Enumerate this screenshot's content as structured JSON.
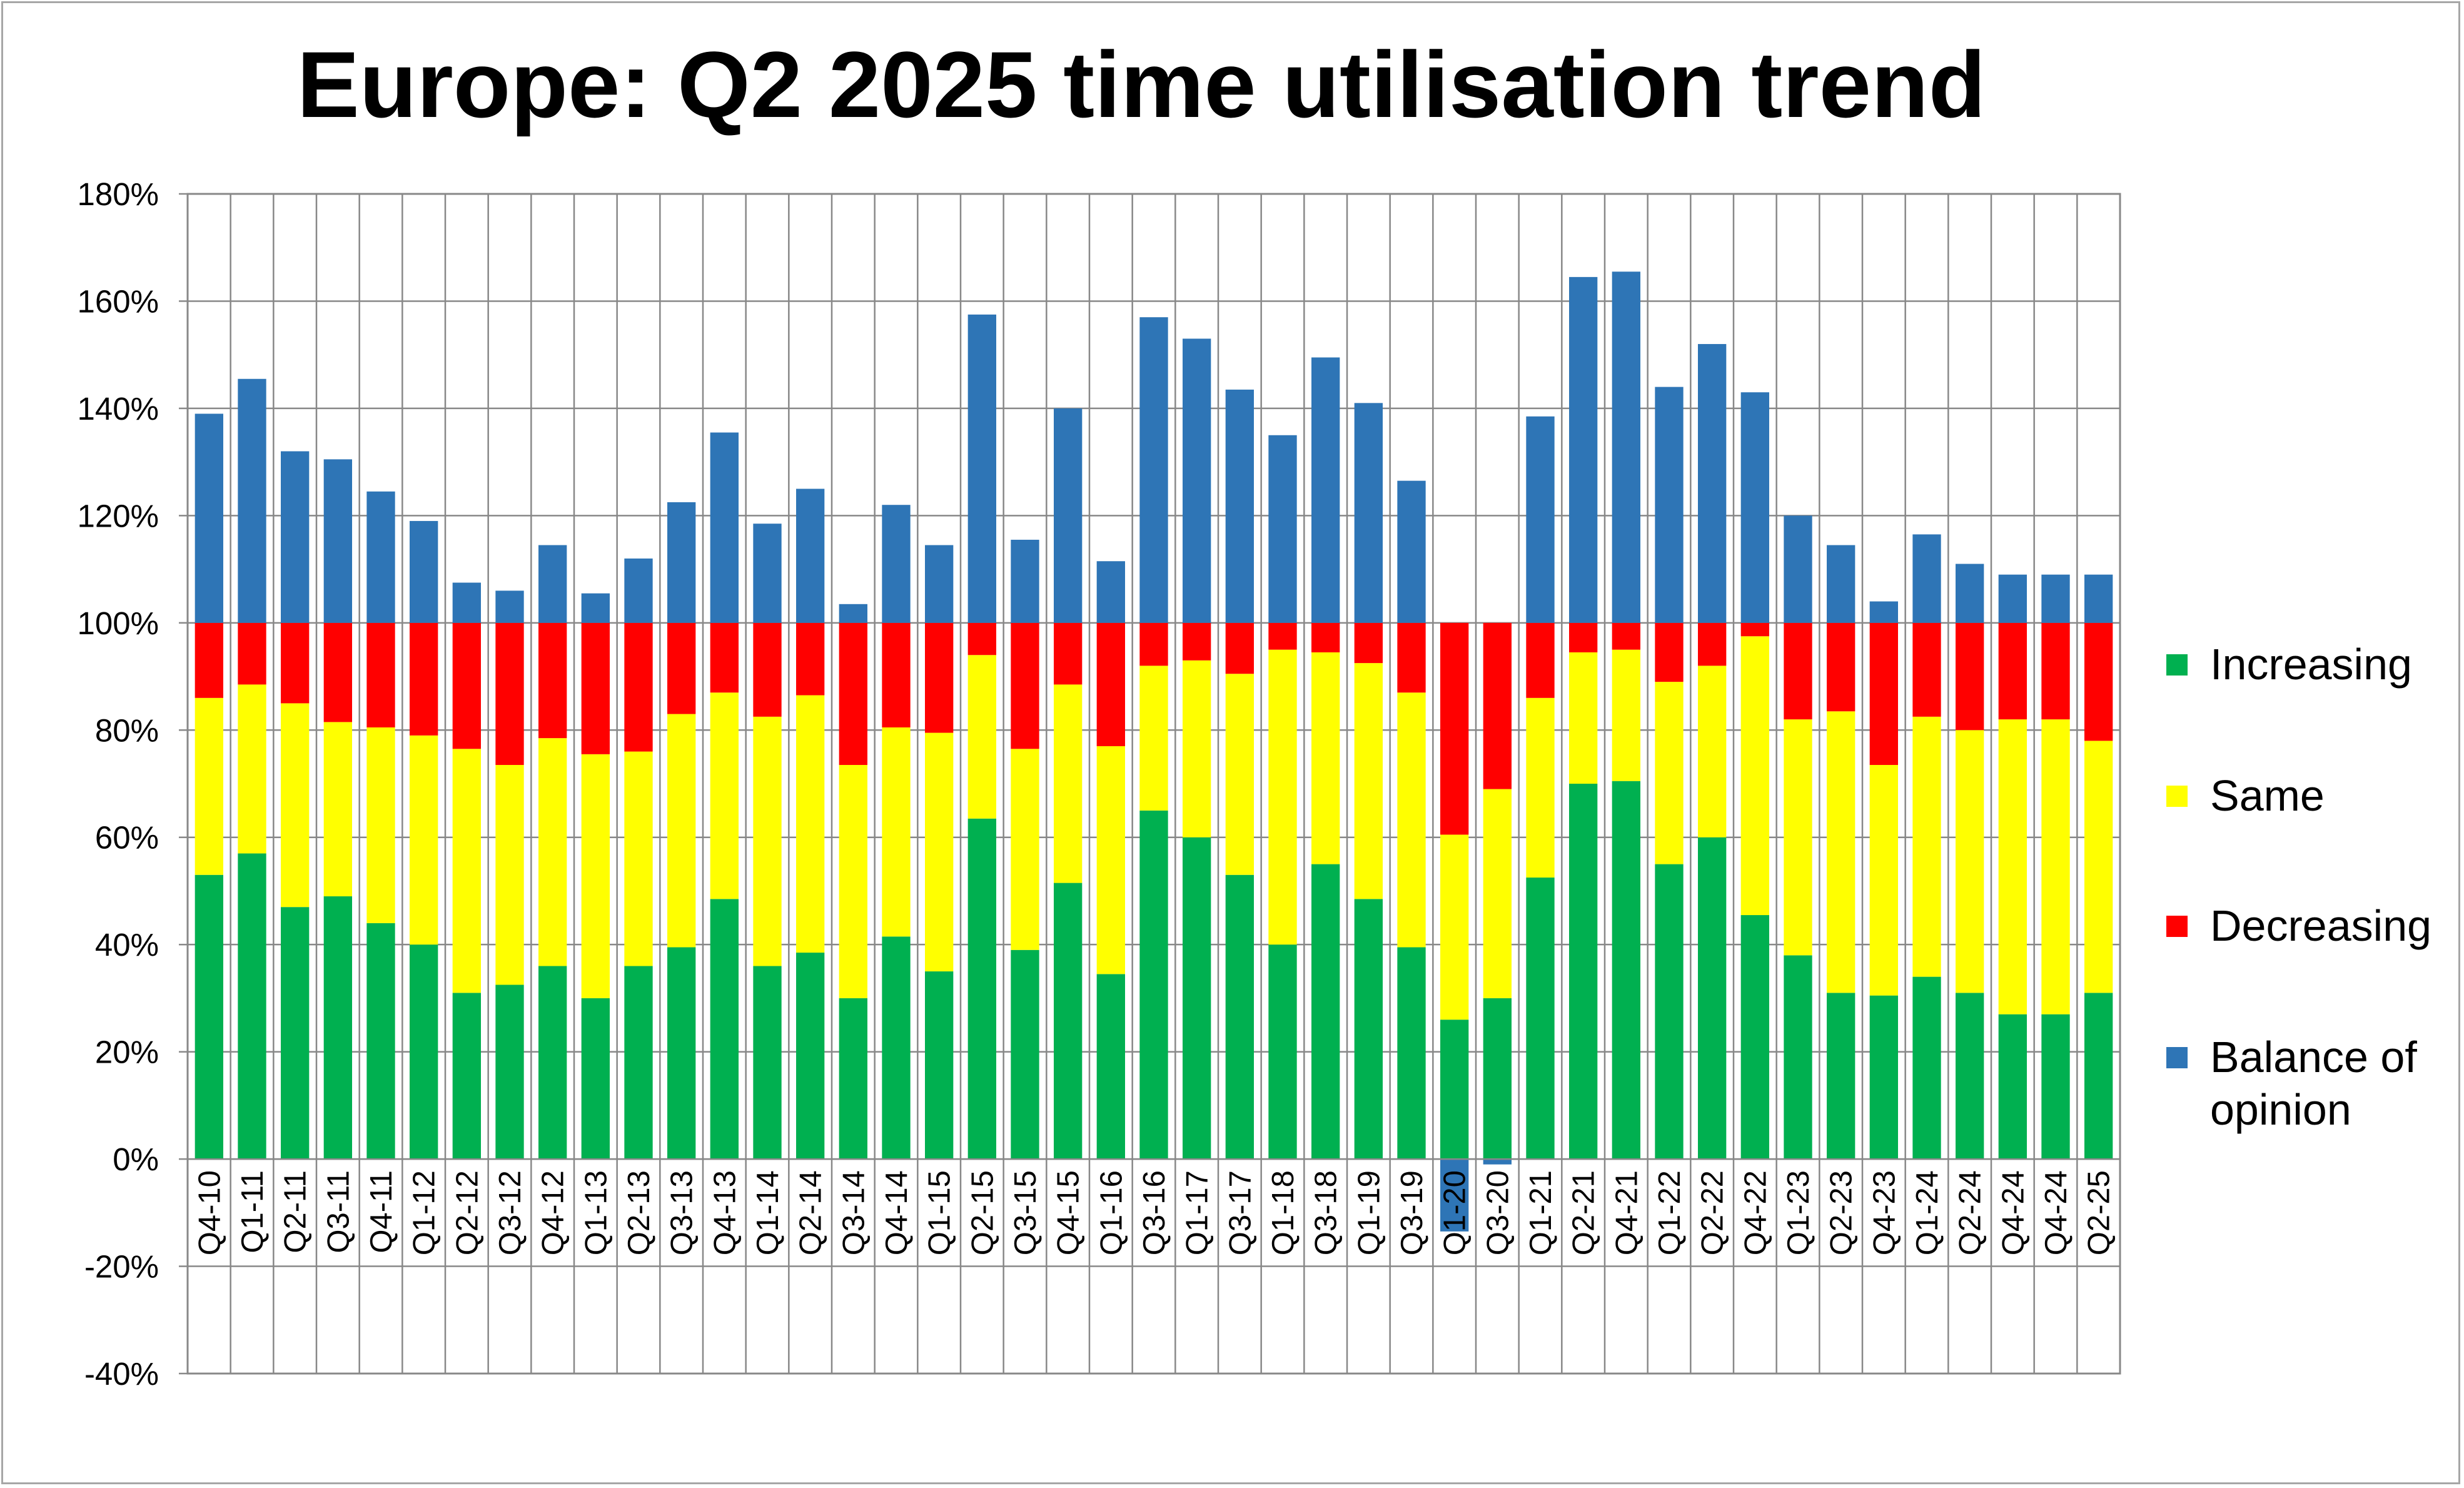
{
  "chart_data": {
    "type": "bar",
    "stacked": true,
    "title": "Europe: Q2 2025 time utilisation trend",
    "ylim": [
      -40,
      180
    ],
    "y_ticks": [
      "-40%",
      "-20%",
      "0%",
      "20%",
      "40%",
      "60%",
      "80%",
      "100%",
      "120%",
      "140%",
      "160%",
      "180%"
    ],
    "y_tick_values": [
      -40,
      -20,
      0,
      20,
      40,
      60,
      80,
      100,
      120,
      140,
      160,
      180
    ],
    "grid": "horizontal and vertical",
    "legend_position": "right",
    "categories": [
      "Q4-10",
      "Q1-11",
      "Q2-11",
      "Q3-11",
      "Q4-11",
      "Q1-12",
      "Q2-12",
      "Q3-12",
      "Q4-12",
      "Q1-13",
      "Q2-13",
      "Q3-13",
      "Q4-13",
      "Q1-14",
      "Q2-14",
      "Q3-14",
      "Q4-14",
      "Q1-15",
      "Q2-15",
      "Q3-15",
      "Q4-15",
      "Q1-16",
      "Q3-16",
      "Q1-17",
      "Q3-17",
      "Q1-18",
      "Q3-18",
      "Q1-19",
      "Q3-19",
      "Q1-20",
      "Q3-20",
      "Q1-21",
      "Q2-21",
      "Q4-21",
      "Q1-22",
      "Q2-22",
      "Q4-22",
      "Q1-23",
      "Q2-23",
      "Q4-23",
      "Q1-24",
      "Q2-24",
      "Q4-24",
      "Q4-24",
      "Q2-25"
    ],
    "series": [
      {
        "name": "Increasing",
        "color": "#00b050",
        "values": [
          53,
          57,
          47,
          49,
          44,
          40,
          31,
          32.5,
          36,
          30,
          36,
          39.5,
          48.5,
          36,
          38.5,
          30,
          41.5,
          35,
          63.5,
          39,
          51.5,
          34.5,
          65,
          60,
          53,
          40,
          55,
          48.5,
          39.5,
          26,
          30,
          52.5,
          70,
          70.5,
          55,
          60,
          45.5,
          38,
          31,
          30.5,
          34,
          31,
          27,
          27,
          31
        ]
      },
      {
        "name": "Same",
        "color": "#ffff00",
        "values": [
          33,
          31.5,
          38,
          32.5,
          36.5,
          39,
          45.5,
          41,
          42.5,
          45.5,
          40,
          43.5,
          38.5,
          46.5,
          48,
          43.5,
          39,
          44.5,
          30.5,
          37.5,
          37,
          42.5,
          27,
          33,
          37.5,
          55,
          39.5,
          44,
          47.5,
          34.5,
          39,
          33.5,
          24.5,
          24.5,
          34,
          32,
          52,
          44,
          52.5,
          43,
          48.5,
          49,
          55,
          55,
          47
        ]
      },
      {
        "name": "Decreasing",
        "color": "#ff0000",
        "values": [
          14,
          11.5,
          15,
          18.5,
          19.5,
          21,
          23.5,
          26.5,
          21.5,
          24.5,
          24,
          17,
          13,
          17.5,
          13.5,
          26.5,
          19.5,
          20.5,
          6,
          23.5,
          11.5,
          23,
          8,
          7,
          9.5,
          5,
          5.5,
          7.5,
          13,
          39.5,
          31,
          14,
          5.5,
          5,
          11,
          8,
          2.5,
          18,
          16.5,
          26.5,
          17.5,
          20,
          18,
          18,
          22
        ]
      },
      {
        "name": "Balance of opinion",
        "color": "#2e75b6",
        "values": [
          39,
          45.5,
          32,
          30.5,
          24.5,
          19,
          7.5,
          6,
          14.5,
          5.5,
          12,
          22.5,
          35.5,
          18.5,
          25,
          3.5,
          22,
          14.5,
          57.5,
          15.5,
          40,
          11.5,
          57,
          53,
          43.5,
          35,
          49.5,
          41,
          26.5,
          -13.5,
          -1,
          38.5,
          64.5,
          65.5,
          44,
          52,
          43,
          20,
          14.5,
          4,
          16.5,
          11,
          9,
          9,
          9
        ]
      }
    ]
  }
}
